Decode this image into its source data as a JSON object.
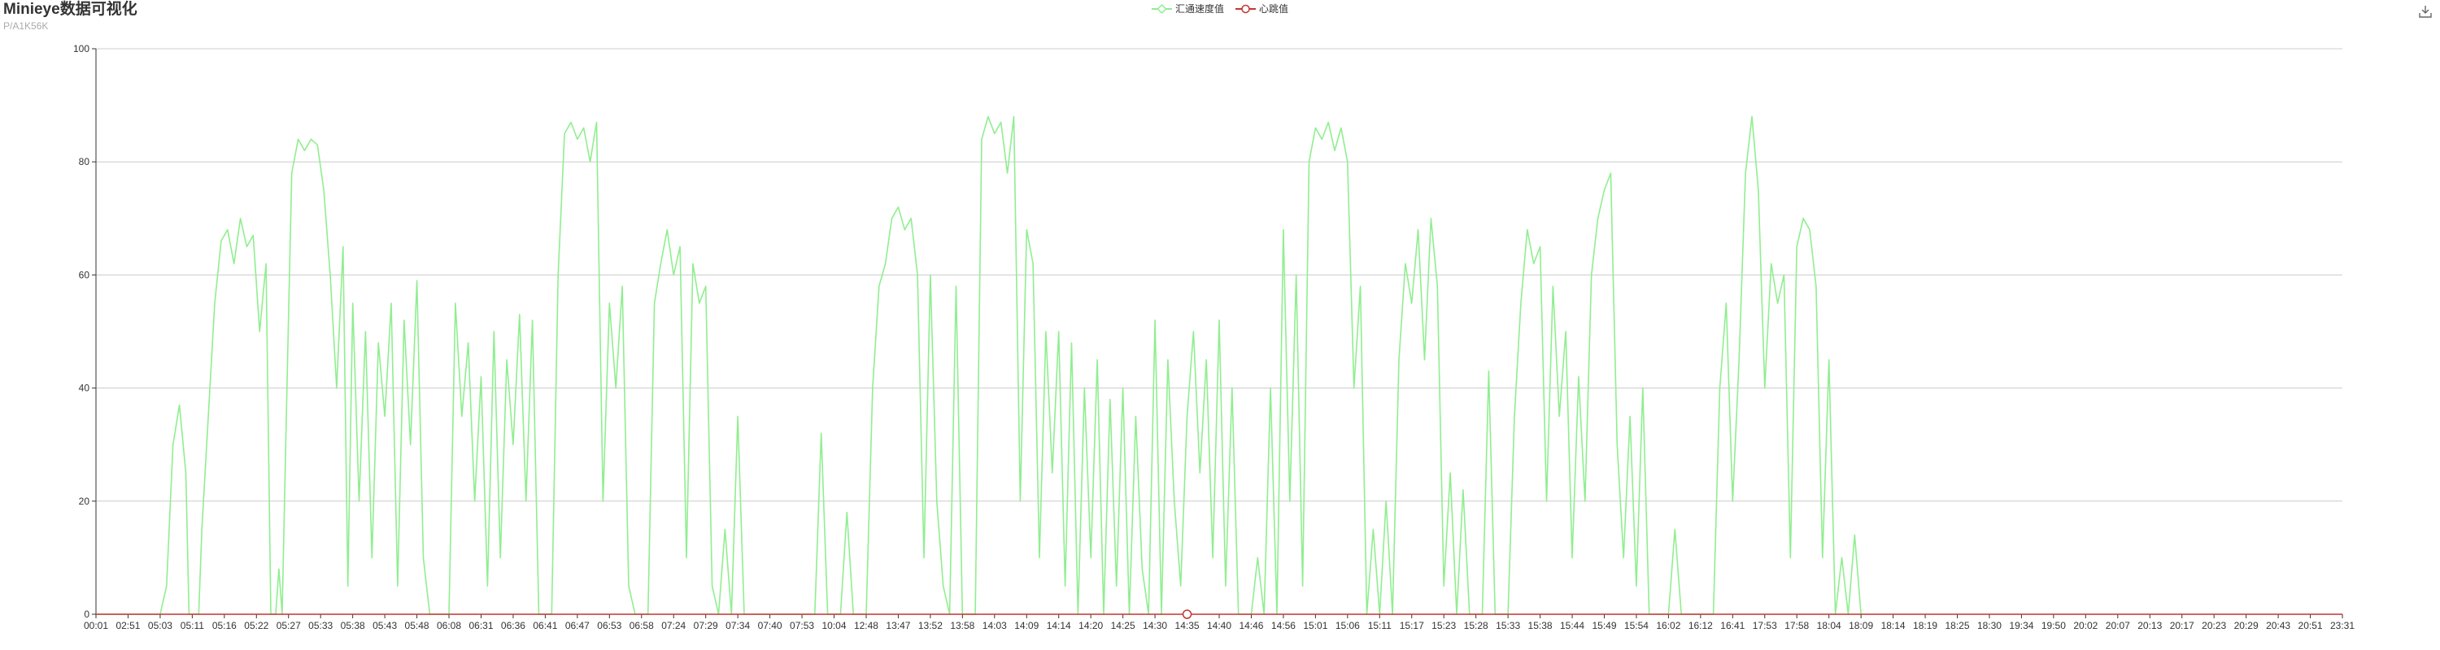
{
  "header": {
    "title": "Minieye数据可视化",
    "subtitle": "P/A1K56K"
  },
  "toolbar": {
    "download_icon": "download-icon"
  },
  "colors": {
    "speed": "#90EE90",
    "heartbeat": "#c23531",
    "grid": "#cccccc",
    "axis": "#333333"
  },
  "chart_data": {
    "type": "line",
    "title": "Minieye数据可视化",
    "subtitle": "P/A1K56K",
    "xlabel": "",
    "ylabel": "",
    "ylim": [
      0,
      100
    ],
    "yticks": [
      0,
      20,
      40,
      60,
      80,
      100
    ],
    "grid": true,
    "legend_position": "top-center",
    "x_tick_labels": [
      "00:01",
      "02:51",
      "05:03",
      "05:11",
      "05:16",
      "05:22",
      "05:27",
      "05:33",
      "05:38",
      "05:43",
      "05:48",
      "06:08",
      "06:31",
      "06:36",
      "06:41",
      "06:47",
      "06:53",
      "06:58",
      "07:24",
      "07:29",
      "07:34",
      "07:40",
      "07:53",
      "10:04",
      "12:48",
      "13:47",
      "13:52",
      "13:58",
      "14:03",
      "14:09",
      "14:14",
      "14:20",
      "14:25",
      "14:30",
      "14:35",
      "14:40",
      "14:46",
      "14:56",
      "15:01",
      "15:06",
      "15:11",
      "15:17",
      "15:23",
      "15:28",
      "15:33",
      "15:38",
      "15:44",
      "15:49",
      "15:54",
      "16:02",
      "16:12",
      "16:41",
      "17:53",
      "17:58",
      "18:04",
      "18:09",
      "18:14",
      "18:19",
      "18:25",
      "18:30",
      "19:34",
      "19:50",
      "20:02",
      "20:07",
      "20:13",
      "20:17",
      "20:23",
      "20:29",
      "20:43",
      "20:51",
      "23:31"
    ],
    "series": [
      {
        "name": "汇通速度值",
        "color": "#90EE90",
        "marker": "diamond",
        "segments": [
          [
            0,
            0
          ],
          [
            2,
            0
          ],
          [
            2.2,
            5
          ],
          [
            2.4,
            30
          ],
          [
            2.6,
            37
          ],
          [
            2.8,
            25
          ],
          [
            2.9,
            0
          ],
          [
            3.2,
            0
          ],
          [
            3.3,
            15
          ],
          [
            3.5,
            35
          ],
          [
            3.7,
            55
          ],
          [
            3.9,
            66
          ],
          [
            4.1,
            68
          ],
          [
            4.3,
            62
          ],
          [
            4.5,
            70
          ],
          [
            4.7,
            65
          ],
          [
            4.9,
            67
          ],
          [
            5.1,
            50
          ],
          [
            5.3,
            62
          ],
          [
            5.45,
            0
          ],
          [
            5.6,
            0
          ],
          [
            5.7,
            8
          ],
          [
            5.8,
            0
          ],
          [
            5.95,
            40
          ],
          [
            6.1,
            78
          ],
          [
            6.3,
            84
          ],
          [
            6.5,
            82
          ],
          [
            6.7,
            84
          ],
          [
            6.9,
            83
          ],
          [
            7.1,
            75
          ],
          [
            7.3,
            60
          ],
          [
            7.5,
            40
          ],
          [
            7.7,
            65
          ],
          [
            7.85,
            5
          ],
          [
            8.0,
            55
          ],
          [
            8.2,
            20
          ],
          [
            8.4,
            50
          ],
          [
            8.6,
            10
          ],
          [
            8.8,
            48
          ],
          [
            9.0,
            35
          ],
          [
            9.2,
            55
          ],
          [
            9.4,
            5
          ],
          [
            9.6,
            52
          ],
          [
            9.8,
            30
          ],
          [
            10.0,
            59
          ],
          [
            10.2,
            10
          ],
          [
            10.4,
            0
          ],
          [
            11.0,
            0
          ],
          [
            11.2,
            55
          ],
          [
            11.4,
            35
          ],
          [
            11.6,
            48
          ],
          [
            11.8,
            20
          ],
          [
            12.0,
            42
          ],
          [
            12.2,
            5
          ],
          [
            12.4,
            50
          ],
          [
            12.6,
            10
          ],
          [
            12.8,
            45
          ],
          [
            13.0,
            30
          ],
          [
            13.2,
            53
          ],
          [
            13.4,
            20
          ],
          [
            13.6,
            52
          ],
          [
            13.8,
            0
          ],
          [
            14.2,
            0
          ],
          [
            14.4,
            60
          ],
          [
            14.6,
            85
          ],
          [
            14.8,
            87
          ],
          [
            15.0,
            84
          ],
          [
            15.2,
            86
          ],
          [
            15.4,
            80
          ],
          [
            15.6,
            87
          ],
          [
            15.8,
            20
          ],
          [
            16.0,
            55
          ],
          [
            16.2,
            40
          ],
          [
            16.4,
            58
          ],
          [
            16.6,
            5
          ],
          [
            16.8,
            0
          ],
          [
            17.2,
            0
          ],
          [
            17.4,
            55
          ],
          [
            17.6,
            62
          ],
          [
            17.8,
            68
          ],
          [
            18.0,
            60
          ],
          [
            18.2,
            65
          ],
          [
            18.4,
            10
          ],
          [
            18.6,
            62
          ],
          [
            18.8,
            55
          ],
          [
            19.0,
            58
          ],
          [
            19.2,
            5
          ],
          [
            19.4,
            0
          ],
          [
            19.6,
            15
          ],
          [
            19.8,
            0
          ],
          [
            20.0,
            35
          ],
          [
            20.2,
            0
          ],
          [
            22.4,
            0
          ],
          [
            22.6,
            32
          ],
          [
            22.8,
            0
          ],
          [
            23.2,
            0
          ],
          [
            23.4,
            18
          ],
          [
            23.6,
            0
          ],
          [
            24.0,
            0
          ],
          [
            24.2,
            40
          ],
          [
            24.4,
            58
          ],
          [
            24.6,
            62
          ],
          [
            24.8,
            70
          ],
          [
            25.0,
            72
          ],
          [
            25.2,
            68
          ],
          [
            25.4,
            70
          ],
          [
            25.6,
            60
          ],
          [
            25.8,
            10
          ],
          [
            26.0,
            60
          ],
          [
            26.2,
            20
          ],
          [
            26.4,
            5
          ],
          [
            26.6,
            0
          ],
          [
            26.8,
            58
          ],
          [
            27.0,
            0
          ],
          [
            27.4,
            0
          ],
          [
            27.6,
            84
          ],
          [
            27.8,
            88
          ],
          [
            28.0,
            85
          ],
          [
            28.2,
            87
          ],
          [
            28.4,
            78
          ],
          [
            28.6,
            88
          ],
          [
            28.8,
            20
          ],
          [
            29.0,
            68
          ],
          [
            29.2,
            62
          ],
          [
            29.4,
            10
          ],
          [
            29.6,
            50
          ],
          [
            29.8,
            25
          ],
          [
            30.0,
            50
          ],
          [
            30.2,
            5
          ],
          [
            30.4,
            48
          ],
          [
            30.6,
            0
          ],
          [
            30.8,
            40
          ],
          [
            31.0,
            10
          ],
          [
            31.2,
            45
          ],
          [
            31.4,
            0
          ],
          [
            31.6,
            38
          ],
          [
            31.8,
            5
          ],
          [
            32.0,
            40
          ],
          [
            32.2,
            0
          ],
          [
            32.4,
            35
          ],
          [
            32.6,
            8
          ],
          [
            32.8,
            0
          ],
          [
            33.0,
            52
          ],
          [
            33.2,
            0
          ],
          [
            33.4,
            45
          ],
          [
            33.6,
            20
          ],
          [
            33.8,
            5
          ],
          [
            34.0,
            35
          ],
          [
            34.2,
            50
          ],
          [
            34.4,
            25
          ],
          [
            34.6,
            45
          ],
          [
            34.8,
            10
          ],
          [
            35.0,
            52
          ],
          [
            35.2,
            5
          ],
          [
            35.4,
            40
          ],
          [
            35.6,
            0
          ],
          [
            36.0,
            0
          ],
          [
            36.2,
            10
          ],
          [
            36.4,
            0
          ],
          [
            36.6,
            40
          ],
          [
            36.8,
            0
          ],
          [
            37.0,
            68
          ],
          [
            37.2,
            20
          ],
          [
            37.4,
            60
          ],
          [
            37.6,
            5
          ],
          [
            37.8,
            80
          ],
          [
            38.0,
            86
          ],
          [
            38.2,
            84
          ],
          [
            38.4,
            87
          ],
          [
            38.6,
            82
          ],
          [
            38.8,
            86
          ],
          [
            39.0,
            80
          ],
          [
            39.2,
            40
          ],
          [
            39.4,
            58
          ],
          [
            39.6,
            0
          ],
          [
            39.8,
            15
          ],
          [
            40.0,
            0
          ],
          [
            40.2,
            20
          ],
          [
            40.4,
            0
          ],
          [
            40.6,
            45
          ],
          [
            40.8,
            62
          ],
          [
            41.0,
            55
          ],
          [
            41.2,
            68
          ],
          [
            41.4,
            45
          ],
          [
            41.6,
            70
          ],
          [
            41.8,
            58
          ],
          [
            42.0,
            5
          ],
          [
            42.2,
            25
          ],
          [
            42.4,
            0
          ],
          [
            42.6,
            22
          ],
          [
            42.8,
            0
          ],
          [
            43.2,
            0
          ],
          [
            43.4,
            43
          ],
          [
            43.6,
            0
          ],
          [
            44.0,
            0
          ],
          [
            44.2,
            35
          ],
          [
            44.4,
            55
          ],
          [
            44.6,
            68
          ],
          [
            44.8,
            62
          ],
          [
            45.0,
            65
          ],
          [
            45.2,
            20
          ],
          [
            45.4,
            58
          ],
          [
            45.6,
            35
          ],
          [
            45.8,
            50
          ],
          [
            46.0,
            10
          ],
          [
            46.2,
            42
          ],
          [
            46.4,
            20
          ],
          [
            46.6,
            60
          ],
          [
            46.8,
            70
          ],
          [
            47.0,
            75
          ],
          [
            47.2,
            78
          ],
          [
            47.4,
            30
          ],
          [
            47.6,
            10
          ],
          [
            47.8,
            35
          ],
          [
            48.0,
            5
          ],
          [
            48.2,
            40
          ],
          [
            48.4,
            0
          ],
          [
            48.6,
            0
          ],
          [
            49.0,
            0
          ],
          [
            49.2,
            15
          ],
          [
            49.4,
            0
          ],
          [
            50.4,
            0
          ],
          [
            50.6,
            40
          ],
          [
            50.8,
            55
          ],
          [
            51.0,
            20
          ],
          [
            51.2,
            45
          ],
          [
            51.4,
            78
          ],
          [
            51.6,
            88
          ],
          [
            51.8,
            75
          ],
          [
            52.0,
            40
          ],
          [
            52.2,
            62
          ],
          [
            52.4,
            55
          ],
          [
            52.6,
            60
          ],
          [
            52.8,
            10
          ],
          [
            53.0,
            65
          ],
          [
            53.2,
            70
          ],
          [
            53.4,
            68
          ],
          [
            53.6,
            58
          ],
          [
            53.8,
            10
          ],
          [
            54.0,
            45
          ],
          [
            54.2,
            0
          ],
          [
            54.4,
            10
          ],
          [
            54.6,
            0
          ],
          [
            54.8,
            14
          ],
          [
            55.0,
            0
          ]
        ]
      },
      {
        "name": "心跳值",
        "color": "#c23531",
        "marker": "circle",
        "flat_value": 0,
        "highlight_point_label": "14:35"
      }
    ]
  }
}
